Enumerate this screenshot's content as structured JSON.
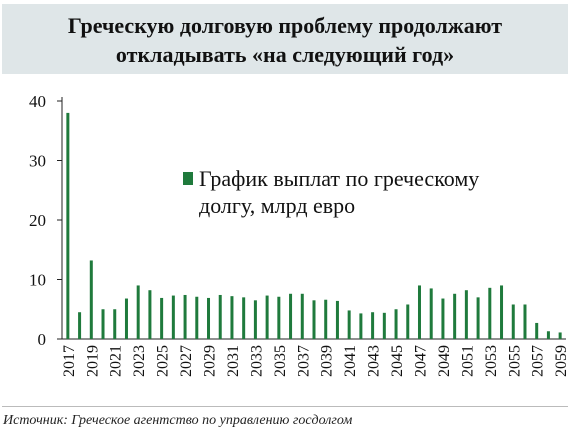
{
  "title": {
    "line1": "Греческую долговую проблему продолжают",
    "line2": "откладывать «на следующий год»"
  },
  "source": "Источник: Греческое агентство по управлению госдолгом",
  "chart_data": {
    "type": "bar",
    "legend": {
      "label_line1": "График выплат по греческому",
      "label_line2": "долгу, млрд евро",
      "placement": "top-center"
    },
    "bar_color": "#1f7a3c",
    "ylim": [
      0,
      40
    ],
    "yticks": [
      0,
      10,
      20,
      30,
      40
    ],
    "xtick_labels": [
      "2017",
      "2019",
      "2021",
      "2023",
      "2025",
      "2027",
      "2029",
      "2031",
      "2033",
      "2035",
      "2037",
      "2039",
      "2041",
      "2043",
      "2045",
      "2047",
      "2049",
      "2051",
      "2053",
      "2055",
      "2057",
      "2059"
    ],
    "grid": false,
    "series": [
      {
        "categories": [
          "2017",
          "2018",
          "2019",
          "2020",
          "2021",
          "2022",
          "2023",
          "2024",
          "2025",
          "2026",
          "2027",
          "2028",
          "2029",
          "2030",
          "2031",
          "2032",
          "2033",
          "2034",
          "2035",
          "2036",
          "2037",
          "2038",
          "2039",
          "2040",
          "2041",
          "2042",
          "2043",
          "2044",
          "2045",
          "2046",
          "2047",
          "2048",
          "2049",
          "2050",
          "2051",
          "2052",
          "2053",
          "2054",
          "2055",
          "2056",
          "2057",
          "2058",
          "2059"
        ],
        "values": [
          38.0,
          4.5,
          13.2,
          5.0,
          5.0,
          6.8,
          9.0,
          8.2,
          6.9,
          7.3,
          7.4,
          7.1,
          6.9,
          7.4,
          7.2,
          7.0,
          6.5,
          7.3,
          7.1,
          7.6,
          7.6,
          6.5,
          6.6,
          6.4,
          4.8,
          4.3,
          4.5,
          4.4,
          5.0,
          5.8,
          9.0,
          8.5,
          6.8,
          7.6,
          8.2,
          7.0,
          8.6,
          9.0,
          5.8,
          5.8,
          2.7,
          1.3,
          1.1
        ]
      }
    ]
  }
}
